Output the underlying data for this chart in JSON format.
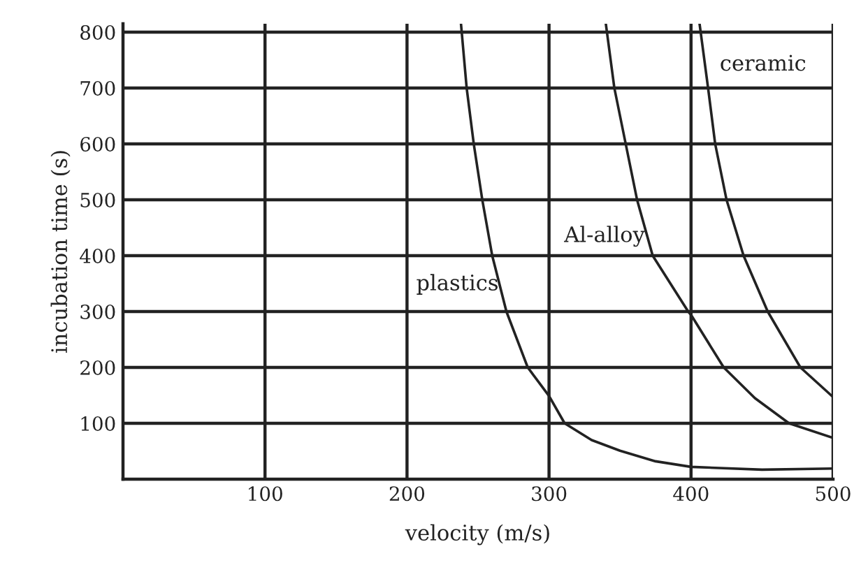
{
  "chart_data": {
    "type": "line",
    "xlabel": "velocity (m/s)",
    "ylabel": "incubation time (s)",
    "xlim": [
      0,
      500
    ],
    "ylim": [
      0,
      815
    ],
    "xticks": [
      100,
      200,
      300,
      400,
      500
    ],
    "yticks": [
      100,
      200,
      300,
      400,
      500,
      600,
      700,
      800
    ],
    "grid": true,
    "marker": "none",
    "line_style": "solid",
    "series": [
      {
        "name": "plastics",
        "color": "#222222",
        "x": [
          238,
          242,
          247,
          253,
          260,
          270,
          285,
          300,
          311,
          330,
          350,
          375,
          400,
          450,
          500
        ],
        "values": [
          815,
          700,
          600,
          500,
          400,
          300,
          200,
          149,
          100,
          70,
          51,
          32,
          22,
          17,
          19
        ]
      },
      {
        "name": "Al-alloy",
        "color": "#222222",
        "x": [
          340,
          346,
          354,
          362,
          373,
          398,
          400,
          423,
          445,
          469,
          500
        ],
        "values": [
          815,
          700,
          600,
          500,
          400,
          300,
          294,
          200,
          145,
          100,
          74
        ]
      },
      {
        "name": "ceramic",
        "color": "#222222",
        "x": [
          406,
          412,
          417,
          425,
          437,
          454,
          477,
          500
        ],
        "values": [
          815,
          700,
          600,
          500,
          400,
          300,
          200,
          147
        ]
      }
    ]
  }
}
